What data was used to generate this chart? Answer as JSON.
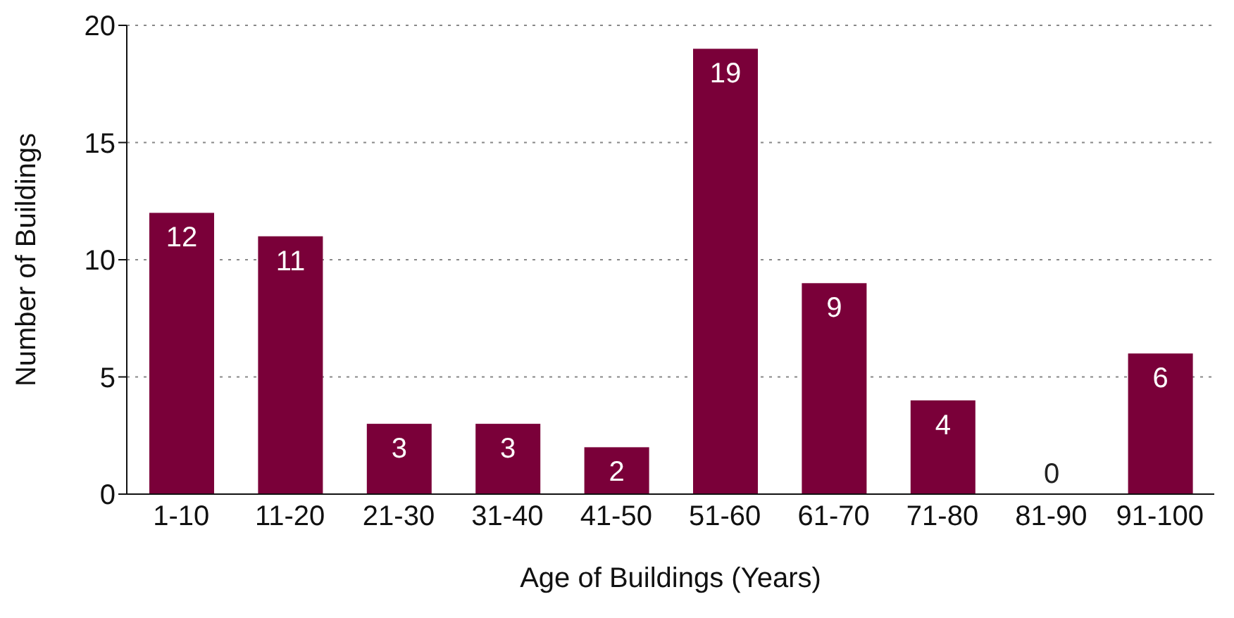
{
  "chart_data": {
    "type": "bar",
    "xlabel": "Age of Buildings (Years)",
    "ylabel": "Number of Buildings",
    "categories": [
      "1-10",
      "11-20",
      "21-30",
      "31-40",
      "41-50",
      "51-60",
      "61-70",
      "71-80",
      "81-90",
      "91-100"
    ],
    "values": [
      12,
      11,
      3,
      3,
      2,
      19,
      9,
      4,
      0,
      6
    ],
    "color": "#7a0039",
    "ylim": [
      0,
      20
    ],
    "yticks": [
      0,
      5,
      10,
      15,
      20
    ],
    "grid": "y",
    "data_labels": true
  }
}
